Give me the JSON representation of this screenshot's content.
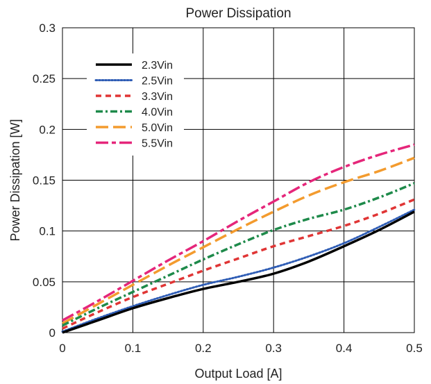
{
  "chart_data": {
    "type": "line",
    "title": "Power Dissipation",
    "xlabel": "Output Load [A]",
    "ylabel": "Power Dissipation [W]",
    "xlim": [
      0,
      0.5
    ],
    "ylim": [
      0,
      0.3
    ],
    "xticks": [
      0,
      0.1,
      0.2,
      0.3,
      0.4,
      0.5
    ],
    "yticks": [
      0,
      0.05,
      0.1,
      0.15,
      0.2,
      0.25,
      0.3
    ],
    "xtick_labels": [
      "0",
      "0.1",
      "0.2",
      "0.3",
      "0.4",
      "0.5"
    ],
    "ytick_labels": [
      "0",
      "0.05",
      "0.1",
      "0.15",
      "0.2",
      "0.25",
      "0.3"
    ],
    "grid": true,
    "legend_position": "top-left",
    "x": [
      0,
      0.05,
      0.1,
      0.15,
      0.2,
      0.25,
      0.3,
      0.35,
      0.4,
      0.45,
      0.5
    ],
    "series": [
      {
        "name": "2.3Vin",
        "color": "#000000",
        "dash": "solid",
        "values": [
          0.0,
          0.012,
          0.024,
          0.034,
          0.043,
          0.05,
          0.058,
          0.07,
          0.085,
          0.101,
          0.119
        ]
      },
      {
        "name": "2.5Vin",
        "color": "#2f5db5",
        "dash": "dotted",
        "values": [
          0.001,
          0.014,
          0.026,
          0.037,
          0.047,
          0.055,
          0.064,
          0.075,
          0.088,
          0.104,
          0.121
        ]
      },
      {
        "name": "3.3Vin",
        "color": "#e03535",
        "dash": "dashed",
        "values": [
          0.004,
          0.02,
          0.035,
          0.048,
          0.061,
          0.073,
          0.085,
          0.095,
          0.105,
          0.117,
          0.131
        ]
      },
      {
        "name": "4.0Vin",
        "color": "#1e8a4a",
        "dash": "dash-dot",
        "values": [
          0.007,
          0.024,
          0.04,
          0.056,
          0.072,
          0.087,
          0.101,
          0.112,
          0.121,
          0.133,
          0.147
        ]
      },
      {
        "name": "5.0Vin",
        "color": "#f39b2e",
        "dash": "long-dash",
        "values": [
          0.009,
          0.028,
          0.047,
          0.066,
          0.084,
          0.102,
          0.119,
          0.135,
          0.148,
          0.159,
          0.172
        ]
      },
      {
        "name": "5.5Vin",
        "color": "#e5267a",
        "dash": "long-dash-dot",
        "values": [
          0.012,
          0.031,
          0.051,
          0.071,
          0.09,
          0.11,
          0.129,
          0.148,
          0.163,
          0.175,
          0.185
        ]
      }
    ]
  }
}
